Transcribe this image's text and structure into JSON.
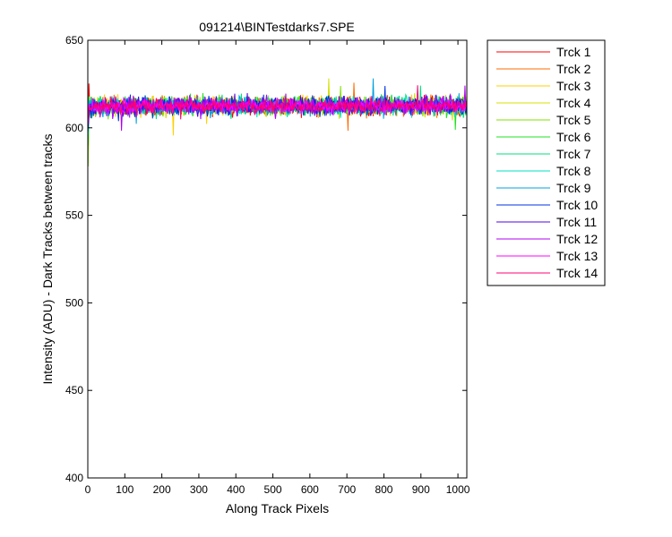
{
  "chart_data": {
    "type": "line",
    "title": "091214\\BINTestdarks7.SPE",
    "xlabel": "Along Track Pixels",
    "ylabel": "Intensity (ADU) - Dark Tracks between tracks",
    "xlim": [
      0,
      1024
    ],
    "ylim": [
      400,
      650
    ],
    "xticks": [
      0,
      100,
      200,
      300,
      400,
      500,
      600,
      700,
      800,
      900,
      1000
    ],
    "yticks": [
      400,
      450,
      500,
      550,
      600,
      650
    ],
    "grid": false,
    "legend_position": "outside-top-right",
    "x": {
      "start": 1,
      "end": 1024,
      "step": 1
    },
    "series": [
      {
        "name": "Trck 1",
        "color": "#ff0000",
        "start": 580,
        "mean": 612,
        "amplitude": 8
      },
      {
        "name": "Trck 2",
        "color": "#ff6a00",
        "start": 584,
        "mean": 612,
        "amplitude": 8
      },
      {
        "name": "Trck 3",
        "color": "#ffd000",
        "start": 588,
        "mean": 612,
        "amplitude": 8
      },
      {
        "name": "Trck 4",
        "color": "#d4e000",
        "start": 592,
        "mean": 612,
        "amplitude": 8
      },
      {
        "name": "Trck 5",
        "color": "#80e000",
        "start": 578,
        "mean": 612,
        "amplitude": 8
      },
      {
        "name": "Trck 6",
        "color": "#20e020",
        "start": 590,
        "mean": 612,
        "amplitude": 8
      },
      {
        "name": "Trck 7",
        "color": "#00e080",
        "start": 594,
        "mean": 612,
        "amplitude": 8
      },
      {
        "name": "Trck 8",
        "color": "#00e0c0",
        "start": 596,
        "mean": 612,
        "amplitude": 8
      },
      {
        "name": "Trck 9",
        "color": "#00a0e0",
        "start": 598,
        "mean": 612,
        "amplitude": 8
      },
      {
        "name": "Trck 10",
        "color": "#0030e0",
        "start": 600,
        "mean": 612,
        "amplitude": 8
      },
      {
        "name": "Trck 11",
        "color": "#5000e0",
        "start": 601,
        "mean": 612,
        "amplitude": 8
      },
      {
        "name": "Trck 12",
        "color": "#b000f0",
        "start": 602,
        "mean": 612,
        "amplitude": 8
      },
      {
        "name": "Trck 13",
        "color": "#ff00ff",
        "start": 604,
        "mean": 612,
        "amplitude": 6
      },
      {
        "name": "Trck 14",
        "color": "#ff0070",
        "start": 606,
        "mean": 612,
        "amplitude": 6
      }
    ]
  }
}
